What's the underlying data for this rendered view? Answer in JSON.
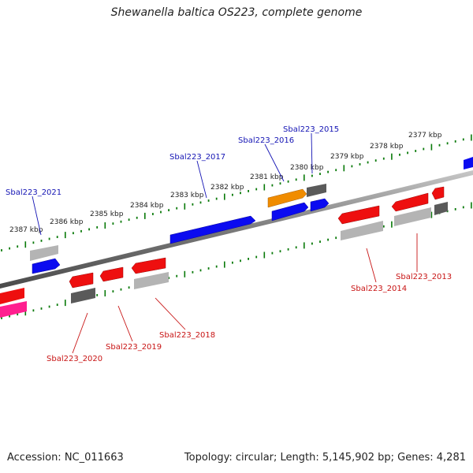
{
  "title": "Shewanella baltica OS223, complete genome",
  "footer": {
    "accession": "Accession: NC_011663",
    "topology": "Topology: circular; Length: 5,145,902 bp; Genes: 4,281"
  },
  "ruler": [
    {
      "label": "2377 kbp"
    },
    {
      "label": "2378 kbp"
    },
    {
      "label": "2379 kbp"
    },
    {
      "label": "2380 kbp"
    },
    {
      "label": "2381 kbp"
    },
    {
      "label": "2382 kbp"
    },
    {
      "label": "2383 kbp"
    },
    {
      "label": "2384 kbp"
    },
    {
      "label": "2385 kbp"
    },
    {
      "label": "2386 kbp"
    },
    {
      "label": "2387 kbp"
    }
  ],
  "gene_labels": {
    "forward": [
      "Sbal223_2015",
      "Sbal223_2016",
      "Sbal223_2017",
      "Sbal223_2021"
    ],
    "reverse": [
      "Sbal223_2013",
      "Sbal223_2014",
      "Sbal223_2018",
      "Sbal223_2019",
      "Sbal223_2020"
    ]
  },
  "colors": {
    "backbone": "#8a8a8a",
    "forward_gene": "#0b0bf0",
    "reverse_gene": "#ee0f0f",
    "orange_gene": "#f08c00",
    "pink_gene": "#ff1f8f",
    "light_gray_gene": "#b4b4b4",
    "dark_gray_gene": "#5a5a5a",
    "tick": "#0a7a0a",
    "forward_label": "#1414b4",
    "reverse_label": "#c81414"
  }
}
